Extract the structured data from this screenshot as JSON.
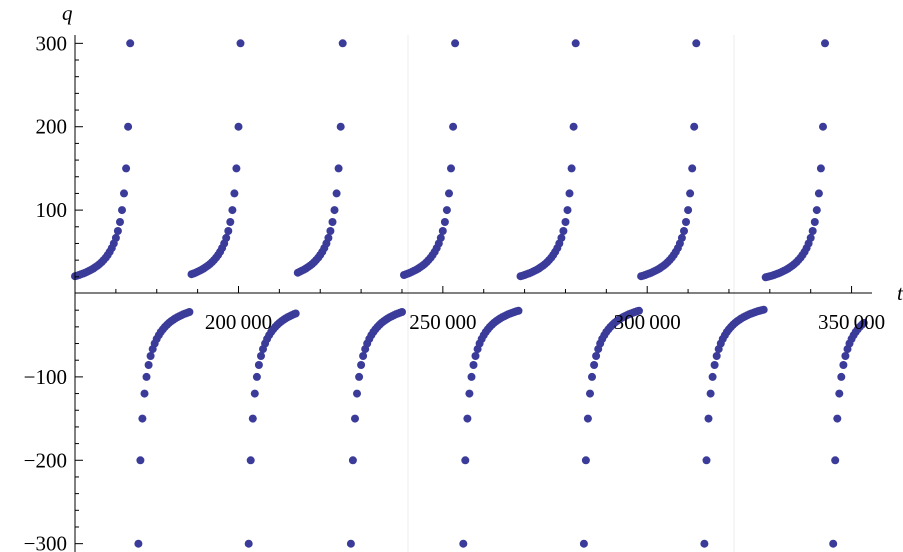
{
  "chart_data": {
    "type": "scatter",
    "title": "",
    "xlabel": "t",
    "ylabel": "q",
    "xlim": [
      160000,
      355000
    ],
    "ylim": [
      -310,
      310
    ],
    "grid": false,
    "x_ticks": [
      {
        "value": 200000,
        "label": "200 000"
      },
      {
        "value": 250000,
        "label": "250 000"
      },
      {
        "value": 300000,
        "label": "300 000"
      },
      {
        "value": 350000,
        "label": "350 000"
      }
    ],
    "y_ticks": [
      {
        "value": 300,
        "label": "300"
      },
      {
        "value": 200,
        "label": "200"
      },
      {
        "value": 100,
        "label": "100"
      },
      {
        "value": -100,
        "label": "−100"
      },
      {
        "value": -200,
        "label": "−200"
      },
      {
        "value": -300,
        "label": "−300"
      }
    ],
    "series": [
      {
        "color": "#3b3b9a",
        "description_of_shape": "tangent-like divergences: q grows to about +300 then jumps to about -300 and recovers to 0",
        "poles": [
          174500,
          201500,
          226500,
          254000,
          283500,
          313000,
          344500
        ],
        "x_start": 160000,
        "x_end": 353000,
        "x_step": 500,
        "y_clip": 310,
        "points": []
      }
    ]
  }
}
